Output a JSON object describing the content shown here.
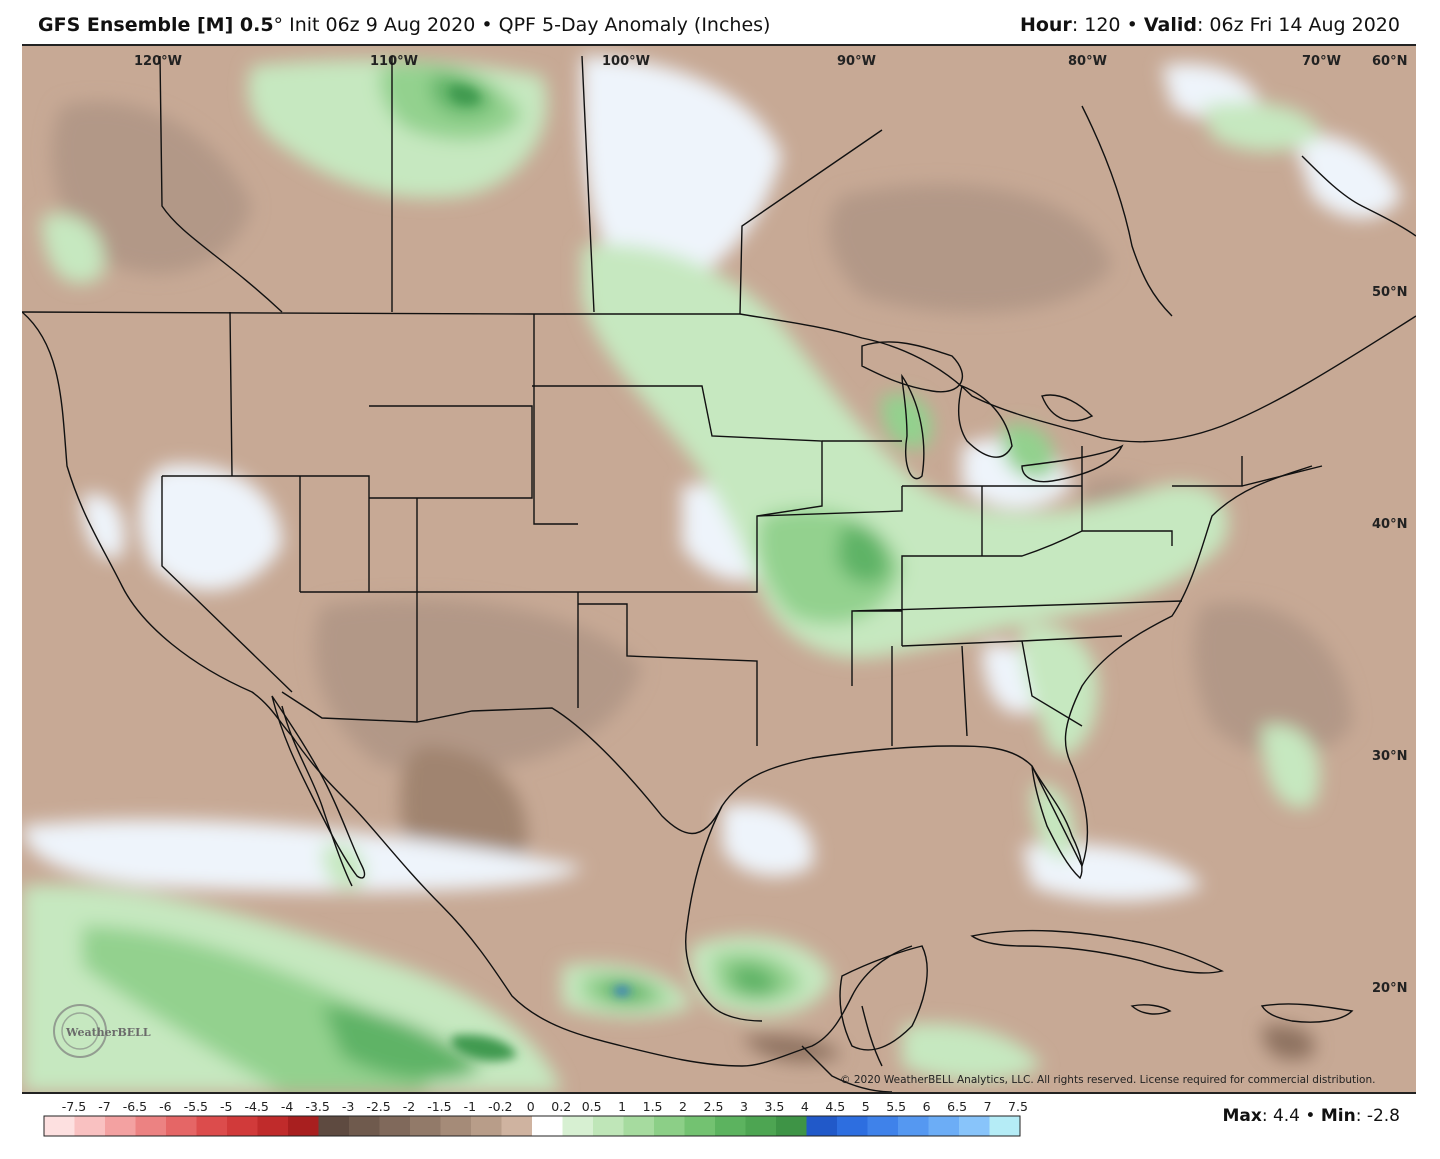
{
  "header": {
    "model": "GFS Ensemble [M] 0.5",
    "deg": "°",
    "init": "Init 06z 9 Aug 2020",
    "sep": "•",
    "product": "QPF 5-Day Anomaly (Inches)",
    "hour_label": "Hour",
    "hour_value": ": 120",
    "valid_label": "Valid",
    "valid_value": ": 06z Fri 14 Aug 2020"
  },
  "map": {
    "lon_labels": [
      "120°W",
      "110°W",
      "100°W",
      "90°W",
      "80°W",
      "70°W",
      "60°N"
    ],
    "lat_labels": [
      "50°N",
      "40°N",
      "30°N",
      "20°N"
    ],
    "copyright": "© 2020 WeatherBELL Analytics, LLC. All rights reserved. License required for commercial distribution.",
    "logo_text": "WeatherBELL",
    "colors": {
      "dry_strong": "#8e7260",
      "dry_medium": "#b29887",
      "dry_light": "#c7a995",
      "neutral": "#eef4fb",
      "wet_light": "#c6e8c0",
      "wet_medium": "#93d18e",
      "wet_strong": "#5fb366",
      "wet_deep": "#3f9a4f",
      "blue_max": "#2a6fd6",
      "borders": "#111111"
    }
  },
  "legend": {
    "ticks": [
      "-7.5",
      "-7",
      "-6.5",
      "-6",
      "-5.5",
      "-5",
      "-4.5",
      "-4",
      "-3.5",
      "-3",
      "-2.5",
      "-2",
      "-1.5",
      "-1",
      "-0.2",
      "0",
      "0.2",
      "0.5",
      "1",
      "1.5",
      "2",
      "2.5",
      "3",
      "3.5",
      "4",
      "4.5",
      "5",
      "5.5",
      "6",
      "6.5",
      "7",
      "7.5"
    ],
    "colors": [
      "#fde0e0",
      "#f9c1c1",
      "#f3a1a1",
      "#ec8282",
      "#e56666",
      "#dc4c4c",
      "#d13a3a",
      "#c02b2b",
      "#a81f1f",
      "#5e4a40",
      "#6f5a4d",
      "#80695b",
      "#927a69",
      "#a58b78",
      "#b89d89",
      "#cfb3a0",
      "#ffffff",
      "#d7f0d2",
      "#bfe6b8",
      "#a6db9f",
      "#8ccf87",
      "#73c271",
      "#5cb35f",
      "#4da552",
      "#3e9446",
      "#2159c9",
      "#2d6ee0",
      "#3f82ea",
      "#5598f1",
      "#6cadf6",
      "#88c4fa",
      "#b5ecf6"
    ],
    "max_label": "Max",
    "max_value": ": 4.4",
    "min_label": "Min",
    "min_value": ": -2.8"
  }
}
